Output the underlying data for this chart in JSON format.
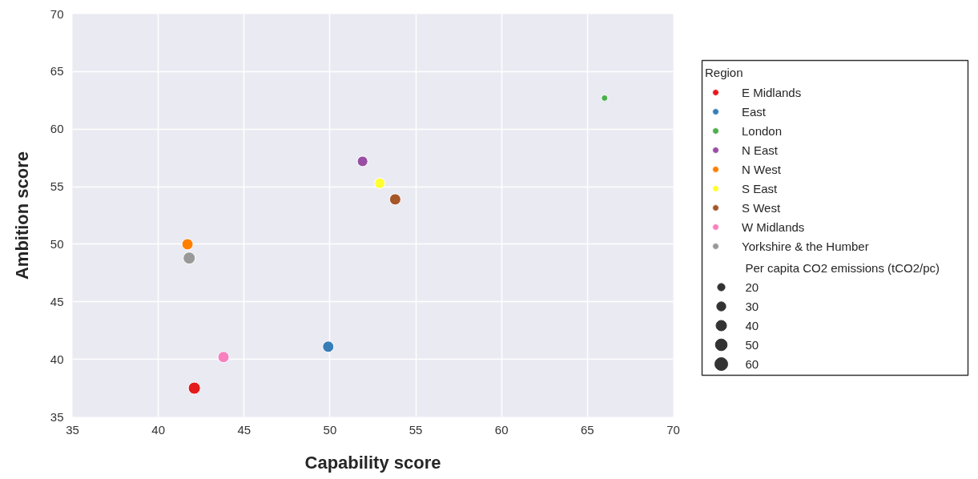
{
  "chart_data": {
    "type": "bubble",
    "xlabel": "Capability score",
    "ylabel": "Ambition score",
    "legend_title": "Region",
    "legend": "right",
    "grid": true,
    "xlim": [
      35,
      70
    ],
    "xticks": [
      35,
      40,
      45,
      50,
      55,
      60,
      65,
      70
    ],
    "ylim": [
      35,
      70
    ],
    "yticks": [
      35,
      40,
      45,
      50,
      55,
      60,
      65,
      70
    ],
    "annotations": [
      "Per capita CO2 emissions (tCO2/pc)"
    ],
    "size_legend": [
      20,
      30,
      40,
      50,
      60
    ],
    "series": [
      {
        "name": "E Midlands",
        "color": "#e41a1c",
        "x": [
          42.1
        ],
        "values": [
          37.5
        ],
        "sizes": [
          53
        ]
      },
      {
        "name": "East",
        "color": "#377eb8",
        "x": [
          49.9
        ],
        "values": [
          41.1
        ],
        "sizes": [
          46
        ]
      },
      {
        "name": "London",
        "color": "#4daf4a",
        "x": [
          66.0
        ],
        "values": [
          62.7
        ],
        "sizes": [
          15
        ]
      },
      {
        "name": "N East",
        "color": "#984ea3",
        "x": [
          51.9
        ],
        "values": [
          57.2
        ],
        "sizes": [
          40
        ]
      },
      {
        "name": "N West",
        "color": "#ff7f00",
        "x": [
          41.7
        ],
        "values": [
          50.0
        ],
        "sizes": [
          46
        ]
      },
      {
        "name": "S East",
        "color": "#ffff33",
        "x": [
          52.9
        ],
        "values": [
          55.3
        ],
        "sizes": [
          40
        ]
      },
      {
        "name": "S West",
        "color": "#a65628",
        "x": [
          53.8
        ],
        "values": [
          53.9
        ],
        "sizes": [
          46
        ]
      },
      {
        "name": "W Midlands",
        "color": "#f781bf",
        "x": [
          43.8
        ],
        "values": [
          40.2
        ],
        "sizes": [
          46
        ]
      },
      {
        "name": "Yorkshire & the Humber",
        "color": "#999999",
        "x": [
          41.8
        ],
        "values": [
          48.8
        ],
        "sizes": [
          53
        ]
      }
    ]
  }
}
